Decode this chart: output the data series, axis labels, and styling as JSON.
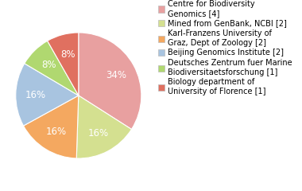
{
  "labels": [
    "Centre for Biodiversity\nGenomics [4]",
    "Mined from GenBank, NCBI [2]",
    "Karl-Franzens University of\nGraz, Dept of Zoology [2]",
    "Beijing Genomics Institute [2]",
    "Deutsches Zentrum fuer Marine\nBiodiversitaetsforschung [1]",
    "Biology department of\nUniversity of Florence [1]"
  ],
  "values": [
    33,
    16,
    16,
    16,
    8,
    8
  ],
  "colors": [
    "#e8a0a0",
    "#d4e090",
    "#f4a860",
    "#a8c4e0",
    "#b0d870",
    "#e07060"
  ],
  "startangle": 90,
  "background_color": "#ffffff",
  "text_fontsize": 7.0,
  "autopct_fontsize": 8.5
}
